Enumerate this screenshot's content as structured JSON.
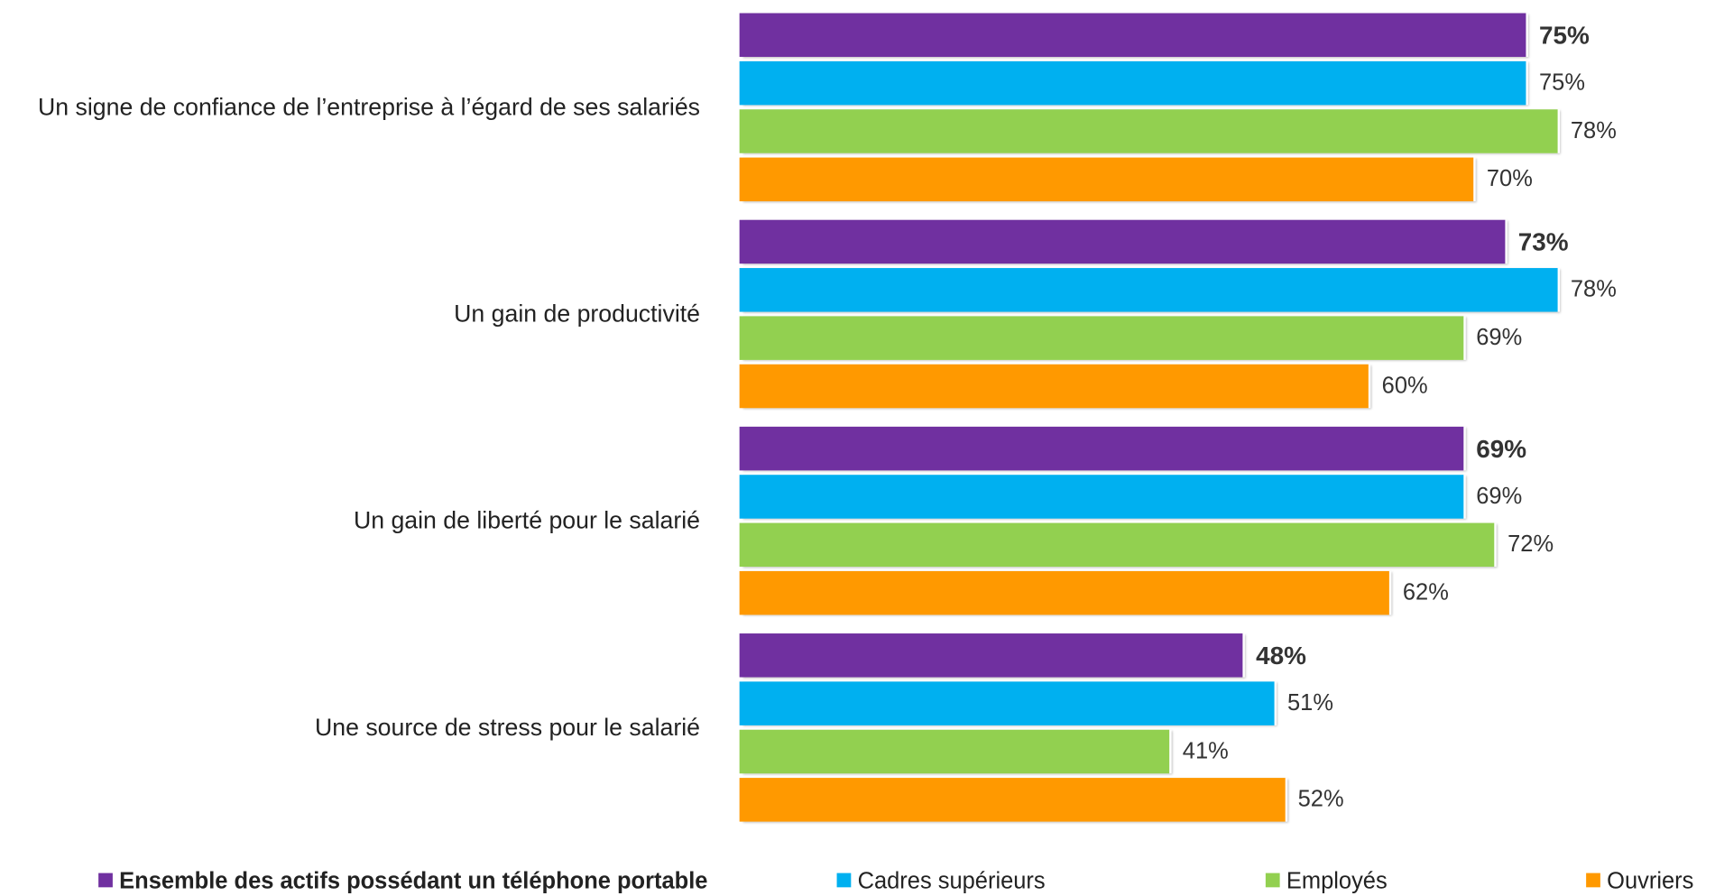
{
  "chart_data": {
    "type": "bar",
    "orientation": "horizontal",
    "categories": [
      "Un signe de confiance de l’entreprise à l’égard de ses salariés",
      "Un gain de productivité",
      "Un gain de liberté pour le salarié",
      "Une source de stress pour le salarié"
    ],
    "series": [
      {
        "name": "Ensemble des actifs possédant un téléphone portable",
        "color": "#7030a0",
        "values": [
          75,
          73,
          69,
          48
        ],
        "value_labels": [
          "75%",
          "73%",
          "69%",
          "48%"
        ]
      },
      {
        "name": "Cadres supérieurs",
        "color": "#00b0f0",
        "values": [
          75,
          78,
          69,
          51
        ],
        "value_labels": [
          "75%",
          "78%",
          "69%",
          "51%"
        ]
      },
      {
        "name": "Employés",
        "color": "#92d050",
        "values": [
          78,
          69,
          72,
          41
        ],
        "value_labels": [
          "78%",
          "69%",
          "72%",
          "41%"
        ]
      },
      {
        "name": "Ouvriers",
        "color": "#ff9900",
        "values": [
          70,
          60,
          62,
          52
        ],
        "value_labels": [
          "70%",
          "60%",
          "62%",
          "52%"
        ]
      }
    ],
    "legend": "bottom"
  }
}
